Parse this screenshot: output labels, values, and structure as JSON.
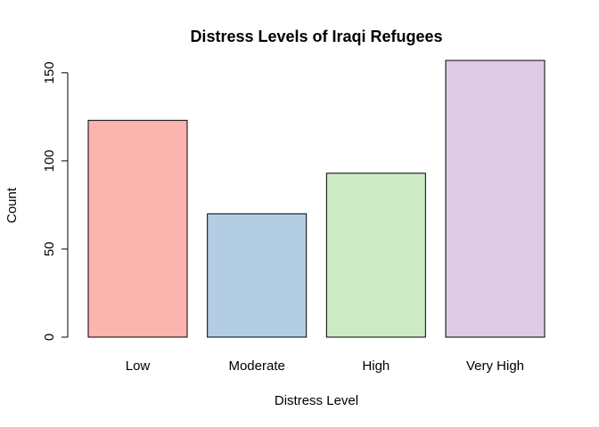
{
  "chart_data": {
    "type": "bar",
    "title": "Distress Levels of Iraqi Refugees",
    "xlabel": "Distress Level",
    "ylabel": "Count",
    "categories": [
      "Low",
      "Moderate",
      "High",
      "Very High"
    ],
    "values": [
      123,
      70,
      93,
      157
    ],
    "colors": [
      "#FBB4AE",
      "#B3CDE3",
      "#CCEBC5",
      "#DECBE4"
    ],
    "ylim": [
      0,
      160
    ],
    "yticks": [
      0,
      50,
      100,
      150
    ],
    "grid": false,
    "legend": "none"
  }
}
